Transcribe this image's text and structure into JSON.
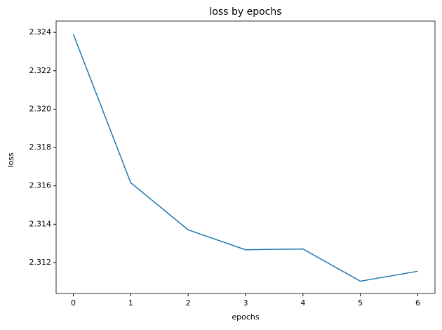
{
  "chart_data": {
    "type": "line",
    "title": "loss by epochs",
    "x_label": "epochs",
    "y_label": "loss",
    "x": [
      0,
      1,
      2,
      3,
      4,
      5,
      6
    ],
    "series": [
      {
        "color": "#1f77b4",
        "values": [
          2.3239,
          2.31616,
          2.31371,
          2.31267,
          2.31271,
          2.31103,
          2.31155
        ]
      }
    ],
    "xlim": [
      -0.3,
      6.3
    ],
    "xticks": [
      0,
      1,
      2,
      3,
      4,
      5,
      6
    ],
    "ylim": [
      2.31039,
      2.32459
    ],
    "yticks": [
      {
        "value": 2.312,
        "label": "2.312"
      },
      {
        "value": 2.314,
        "label": "2.314"
      },
      {
        "value": 2.316,
        "label": "2.316"
      },
      {
        "value": 2.318,
        "label": "2.318"
      },
      {
        "value": 2.32,
        "label": "2.320"
      },
      {
        "value": 2.322,
        "label": "2.322"
      },
      {
        "value": 2.324,
        "label": "2.324"
      }
    ],
    "grid": false
  }
}
